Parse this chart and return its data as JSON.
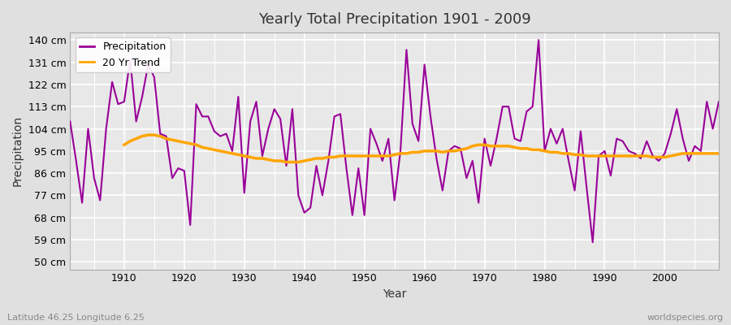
{
  "title": "Yearly Total Precipitation 1901 - 2009",
  "xlabel": "Year",
  "ylabel": "Precipitation",
  "footnote_left": "Latitude 46.25 Longitude 6.25",
  "footnote_right": "worldspecies.org",
  "years": [
    1901,
    1902,
    1903,
    1904,
    1905,
    1906,
    1907,
    1908,
    1909,
    1910,
    1911,
    1912,
    1913,
    1914,
    1915,
    1916,
    1917,
    1918,
    1919,
    1920,
    1921,
    1922,
    1923,
    1924,
    1925,
    1926,
    1927,
    1928,
    1929,
    1930,
    1931,
    1932,
    1933,
    1934,
    1935,
    1936,
    1937,
    1938,
    1939,
    1940,
    1941,
    1942,
    1943,
    1944,
    1945,
    1946,
    1947,
    1948,
    1949,
    1950,
    1951,
    1952,
    1953,
    1954,
    1955,
    1956,
    1957,
    1958,
    1959,
    1960,
    1961,
    1962,
    1963,
    1964,
    1965,
    1966,
    1967,
    1968,
    1969,
    1970,
    1971,
    1972,
    1973,
    1974,
    1975,
    1976,
    1977,
    1978,
    1979,
    1980,
    1981,
    1982,
    1983,
    1984,
    1985,
    1986,
    1987,
    1988,
    1989,
    1990,
    1991,
    1992,
    1993,
    1994,
    1995,
    1996,
    1997,
    1998,
    1999,
    2000,
    2001,
    2002,
    2003,
    2004,
    2005,
    2006,
    2007,
    2008,
    2009
  ],
  "precipitation": [
    107,
    91,
    74,
    104,
    84,
    75,
    104,
    123,
    114,
    115,
    132,
    107,
    117,
    130,
    125,
    102,
    101,
    84,
    88,
    87,
    65,
    114,
    109,
    109,
    103,
    101,
    102,
    95,
    117,
    78,
    107,
    115,
    93,
    104,
    112,
    108,
    89,
    112,
    77,
    70,
    72,
    89,
    77,
    91,
    109,
    110,
    88,
    69,
    88,
    69,
    104,
    98,
    91,
    100,
    75,
    95,
    136,
    106,
    99,
    130,
    109,
    92,
    79,
    95,
    97,
    96,
    84,
    91,
    74,
    100,
    89,
    100,
    113,
    113,
    100,
    99,
    111,
    113,
    140,
    95,
    104,
    98,
    104,
    91,
    79,
    103,
    80,
    58,
    93,
    95,
    85,
    100,
    99,
    95,
    94,
    92,
    99,
    93,
    91,
    94,
    102,
    112,
    100,
    91,
    97,
    95,
    115,
    104,
    115
  ],
  "trend_years": [
    1910,
    1911,
    1912,
    1913,
    1914,
    1915,
    1916,
    1917,
    1918,
    1919,
    1920,
    1921,
    1922,
    1923,
    1924,
    1925,
    1926,
    1927,
    1928,
    1929,
    1930,
    1931,
    1932,
    1933,
    1934,
    1935,
    1936,
    1937,
    1938,
    1939,
    1940,
    1941,
    1942,
    1943,
    1944,
    1945,
    1946,
    1947,
    1948,
    1949,
    1950,
    1951,
    1952,
    1953,
    1954,
    1955,
    1956,
    1957,
    1958,
    1959,
    1960,
    1961,
    1962,
    1963,
    1964,
    1965,
    1966,
    1967,
    1968,
    1969,
    1970,
    1971,
    1972,
    1973,
    1974,
    1975,
    1976,
    1977,
    1978,
    1979,
    1980,
    1981,
    1982,
    1983,
    1984,
    1985,
    1986,
    1987,
    1988,
    1989,
    1990,
    1991,
    1992,
    1993,
    1994,
    1995,
    1996,
    1997,
    1998,
    1999,
    2000,
    2001,
    2002,
    2003,
    2004,
    2005,
    2006,
    2007,
    2008,
    2009
  ],
  "trend": [
    97.5,
    99.0,
    100.0,
    101.0,
    101.5,
    101.5,
    101.0,
    100.0,
    99.5,
    99.0,
    98.5,
    98.0,
    97.5,
    96.5,
    96.0,
    95.5,
    95.0,
    94.5,
    94.0,
    93.5,
    93.0,
    92.5,
    92.0,
    92.0,
    91.5,
    91.0,
    91.0,
    90.5,
    90.5,
    90.5,
    91.0,
    91.5,
    92.0,
    92.0,
    92.5,
    92.5,
    93.0,
    93.0,
    93.0,
    93.0,
    93.0,
    93.0,
    93.0,
    93.0,
    93.0,
    93.5,
    94.0,
    94.0,
    94.5,
    94.5,
    95.0,
    95.0,
    95.0,
    94.5,
    95.0,
    95.0,
    95.5,
    96.0,
    97.0,
    97.5,
    97.5,
    97.0,
    97.0,
    97.0,
    97.0,
    96.5,
    96.0,
    96.0,
    95.5,
    95.5,
    95.0,
    94.5,
    94.5,
    94.0,
    94.0,
    93.5,
    93.5,
    93.0,
    93.0,
    93.0,
    93.0,
    93.0,
    93.0,
    93.0,
    93.0,
    93.0,
    93.0,
    93.0,
    92.5,
    92.5,
    92.5,
    93.0,
    93.5,
    94.0,
    94.0,
    94.0,
    94.0,
    94.0,
    94.0,
    94.0
  ],
  "precip_color": "#990099",
  "trend_color": "#FFA500",
  "bg_color": "#e0e0e0",
  "plot_bg_color": "#e8e8e8",
  "grid_color": "#ffffff",
  "ytick_labels": [
    "50 cm",
    "59 cm",
    "68 cm",
    "77 cm",
    "86 cm",
    "95 cm",
    "104 cm",
    "113 cm",
    "122 cm",
    "131 cm",
    "140 cm"
  ],
  "ytick_values": [
    50,
    59,
    68,
    77,
    86,
    95,
    104,
    113,
    122,
    131,
    140
  ],
  "ylim": [
    47,
    143
  ],
  "xlim": [
    1901,
    2009
  ],
  "xtick_values": [
    1910,
    1920,
    1930,
    1940,
    1950,
    1960,
    1970,
    1980,
    1990,
    2000
  ],
  "legend_labels": [
    "Precipitation",
    "20 Yr Trend"
  ]
}
